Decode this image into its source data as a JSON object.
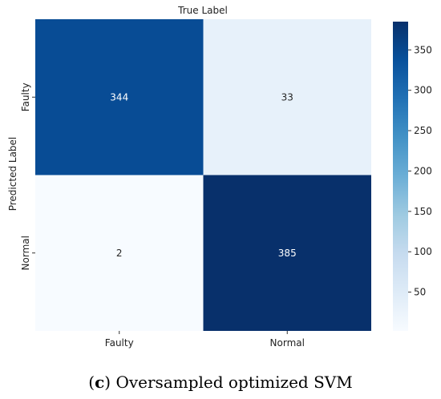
{
  "chart_data": {
    "type": "heatmap",
    "title": "True Label",
    "xlabel": "",
    "ylabel": "Predicted Label",
    "x_categories": [
      "Faulty",
      "Normal"
    ],
    "y_categories": [
      "Faulty",
      "Normal"
    ],
    "values": [
      [
        344,
        33
      ],
      [
        2,
        385
      ]
    ],
    "colorbar": {
      "min": 2,
      "max": 385,
      "ticks": [
        50,
        100,
        150,
        200,
        250,
        300,
        350
      ],
      "colormap": "Blues"
    },
    "grid": false
  },
  "caption": {
    "letter": "c",
    "open": "(",
    "close": ")",
    "text": " Oversampled optimized SVM"
  }
}
